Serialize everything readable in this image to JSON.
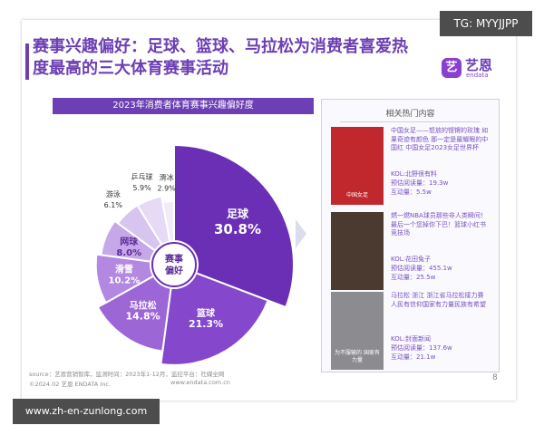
{
  "watermarks": {
    "top_right": "TG: MYYJJPP",
    "bottom_left": "www.zh-en-zunlong.com"
  },
  "title": {
    "line1": "赛事兴趣偏好：足球、篮球、马拉松为消费者喜爱热",
    "line2": "度最高的三大体育赛事活动"
  },
  "logo": {
    "mark": "艺",
    "name": "艺恩",
    "sub": "endata"
  },
  "chart_data": {
    "type": "pie",
    "title": "2023年消费者体育赛事兴趣偏好度",
    "center_label": [
      "赛事",
      "偏好"
    ],
    "slices": [
      {
        "label": "足球",
        "value": 30.8,
        "value_text": "30.8%",
        "color": "#6a2fb5"
      },
      {
        "label": "篮球",
        "value": 21.3,
        "value_text": "21.3%",
        "color": "#8547cc"
      },
      {
        "label": "马拉松",
        "value": 14.8,
        "value_text": "14.8%",
        "color": "#9c66d6"
      },
      {
        "label": "滑雪",
        "value": 10.2,
        "value_text": "10.2%",
        "color": "#b388e0"
      },
      {
        "label": "网球",
        "value": 8.0,
        "value_text": "8.0%",
        "color": "#c6a8e8"
      },
      {
        "label": "游泳",
        "value": 6.1,
        "value_text": "6.1%",
        "color": "#d8c5ef"
      },
      {
        "label": "乒乓球",
        "value": 5.9,
        "value_text": "5.9%",
        "color": "#e6daf4"
      },
      {
        "label": "滑冰",
        "value": 2.9,
        "value_text": "2.9%",
        "color": "#f1ebf8"
      }
    ]
  },
  "panel": {
    "title": "相关热门内容",
    "items": [
      {
        "desc": "中国女足——怒放的铿锵的玫瑰 如果奇迹有颜色 那一定是最耀眼的中国红 中国女足2023女足世界杯",
        "kol": "KOL:北野很有料",
        "reads": "预估阅读量：19.3w",
        "interactions": "互动量：5.5w",
        "thumb_caption": "中国女足",
        "thumb_color": "#c0282d"
      },
      {
        "desc": "燃一燃NBA球员那些非人类瞬间！最后一个您掉你下巴！篮球小红书竞技场",
        "kol": "KOL:花田兔子",
        "reads": "预估阅读量：455.1w",
        "interactions": "互动量：25.5w",
        "thumb_caption": "",
        "thumb_color": "#4a3a30"
      },
      {
        "desc": "马拉松 浙江 浙江省马拉松接力赛 人民有信仰国家有力量民族有希望",
        "kol": "KOL:封面新闻",
        "reads": "预估阅读量：137.6w",
        "interactions": "互动量：21.1w",
        "thumb_caption": "为不服输的 国家有力量",
        "thumb_color": "#8c8c90"
      }
    ]
  },
  "footer": {
    "source": "source：艺恩营销智库，监测时间：2023年1-12月，监控平台：社媒全网",
    "copyright": "©2024.02  艺恩 ENDATA Inc.",
    "url": "www.endata.com.cn",
    "page": "8"
  }
}
